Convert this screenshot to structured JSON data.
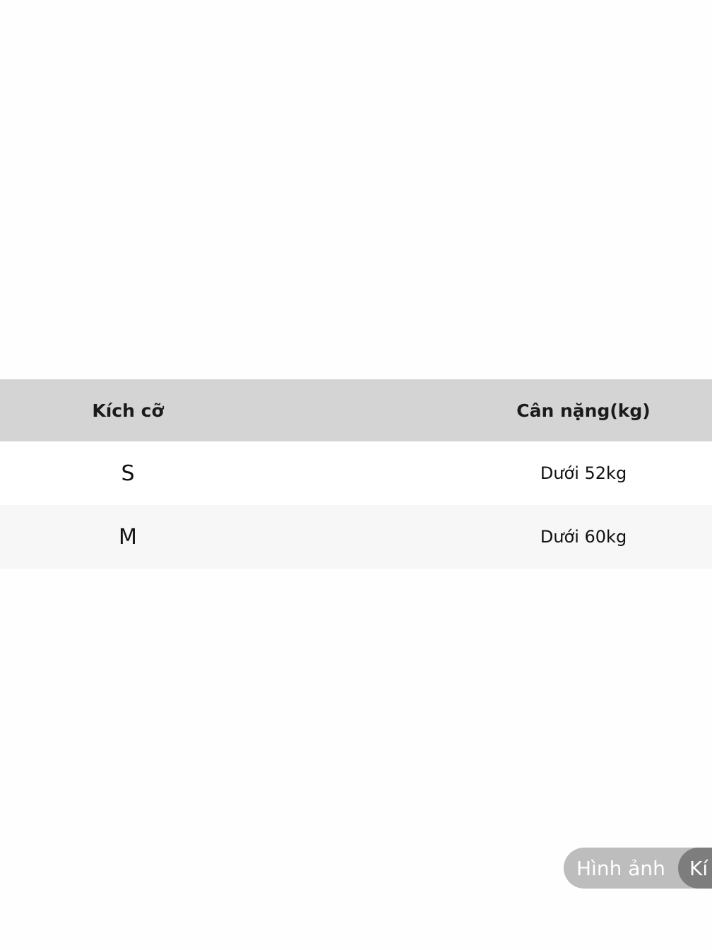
{
  "table": {
    "header": [
      "Kích cỡ",
      "Cân nặng(kg)"
    ],
    "rows": [
      [
        "S",
        "Dưới 52kg"
      ],
      [
        "M",
        "Dưới 60kg"
      ]
    ]
  },
  "tabs": [
    "Hình ảnh",
    "Kí"
  ]
}
